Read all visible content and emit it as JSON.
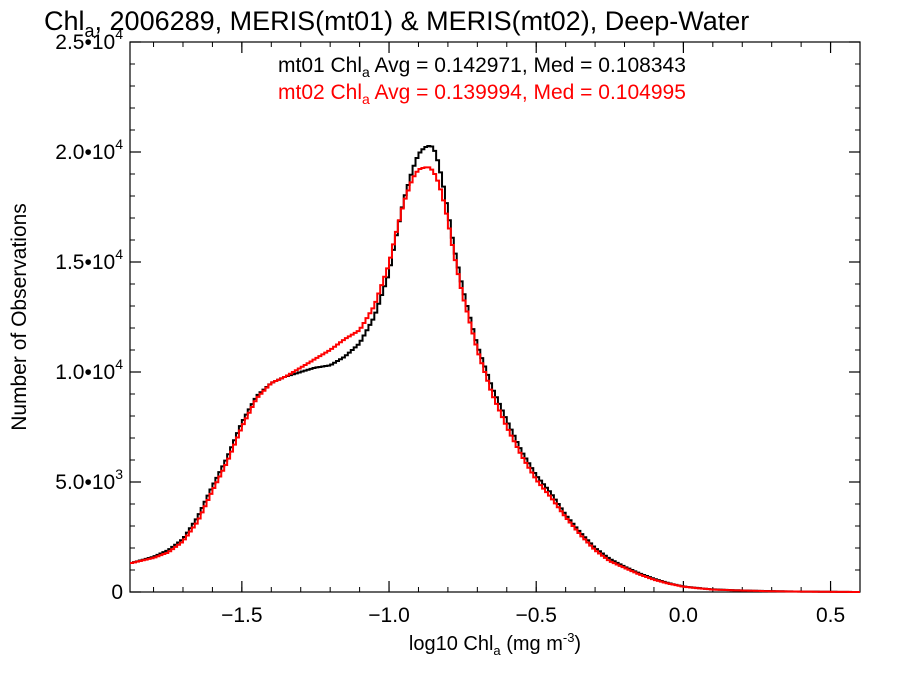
{
  "chart_data": {
    "type": "line",
    "title": {
      "prefix": "Chl",
      "sub": "a",
      "rest": ", 2006289, MERIS(mt01) & MERIS(mt02), Deep-Water"
    },
    "xlabel": {
      "prefix": "log10 Chl",
      "sub": "a",
      "middle": " (mg m",
      "sup": "-3",
      "suffix": ")"
    },
    "ylabel": "Number of Observations",
    "xlim": [
      -1.88,
      0.6
    ],
    "ylim": [
      0,
      25000
    ],
    "x_ticks": [
      {
        "value": -1.5,
        "label": "−1.5"
      },
      {
        "value": -1.0,
        "label": "−1.0"
      },
      {
        "value": -0.5,
        "label": "−0.5"
      },
      {
        "value": 0.0,
        "label": "0.0"
      },
      {
        "value": 0.5,
        "label": "0.5"
      }
    ],
    "y_ticks": [
      {
        "value": 0,
        "mantissa": "0",
        "exp": ""
      },
      {
        "value": 5000,
        "mantissa": "5.0•10",
        "exp": "3"
      },
      {
        "value": 10000,
        "mantissa": "1.0•10",
        "exp": "4"
      },
      {
        "value": 15000,
        "mantissa": "1.5•10",
        "exp": "4"
      },
      {
        "value": 20000,
        "mantissa": "2.0•10",
        "exp": "4"
      },
      {
        "value": 25000,
        "mantissa": "2.5•10",
        "exp": "4"
      }
    ],
    "x_minor_step": 0.1,
    "y_minor_step": 1000,
    "annotations": [
      {
        "prefix": "mt01 Chl",
        "sub": "a",
        "rest": " Avg = 0.142971, Med = 0.108343",
        "color": "#000000"
      },
      {
        "prefix": "mt02 Chl",
        "sub": "a",
        "rest": " Avg = 0.139994, Med = 0.104995",
        "color": "#ff0000"
      }
    ],
    "series": [
      {
        "color": "#000000",
        "x": [
          -1.88,
          -1.8,
          -1.75,
          -1.7,
          -1.65,
          -1.6,
          -1.55,
          -1.5,
          -1.45,
          -1.4,
          -1.35,
          -1.3,
          -1.25,
          -1.2,
          -1.15,
          -1.1,
          -1.05,
          -1.0,
          -0.98,
          -0.95,
          -0.92,
          -0.9,
          -0.88,
          -0.86,
          -0.85,
          -0.84,
          -0.82,
          -0.8,
          -0.78,
          -0.75,
          -0.72,
          -0.7,
          -0.65,
          -0.6,
          -0.55,
          -0.5,
          -0.45,
          -0.4,
          -0.35,
          -0.3,
          -0.25,
          -0.2,
          -0.15,
          -0.1,
          -0.05,
          0.0,
          0.05,
          0.1,
          0.2,
          0.3,
          0.4,
          0.5,
          0.6
        ],
        "y": [
          1300,
          1600,
          1900,
          2400,
          3400,
          4800,
          6100,
          7700,
          8900,
          9500,
          9800,
          10000,
          10200,
          10300,
          10700,
          11300,
          12500,
          14500,
          15900,
          17800,
          19200,
          19900,
          20200,
          20300,
          20200,
          19900,
          18800,
          17300,
          15700,
          13800,
          12200,
          11200,
          9300,
          7800,
          6400,
          5300,
          4500,
          3500,
          2700,
          2000,
          1500,
          1150,
          850,
          600,
          400,
          250,
          180,
          120,
          70,
          40,
          20,
          10,
          0
        ]
      },
      {
        "color": "#ff0000",
        "x": [
          -1.88,
          -1.8,
          -1.75,
          -1.7,
          -1.65,
          -1.6,
          -1.55,
          -1.5,
          -1.45,
          -1.4,
          -1.35,
          -1.3,
          -1.25,
          -1.2,
          -1.15,
          -1.1,
          -1.05,
          -1.0,
          -0.98,
          -0.95,
          -0.92,
          -0.9,
          -0.88,
          -0.86,
          -0.85,
          -0.84,
          -0.82,
          -0.8,
          -0.78,
          -0.75,
          -0.72,
          -0.7,
          -0.65,
          -0.6,
          -0.55,
          -0.5,
          -0.45,
          -0.4,
          -0.35,
          -0.3,
          -0.25,
          -0.2,
          -0.15,
          -0.1,
          -0.05,
          0.0,
          0.05,
          0.1,
          0.2,
          0.3,
          0.4,
          0.5,
          0.6
        ],
        "y": [
          1300,
          1550,
          1800,
          2300,
          3200,
          4600,
          5900,
          7500,
          8800,
          9500,
          9800,
          10200,
          10600,
          11000,
          11500,
          11900,
          13000,
          14900,
          16100,
          17700,
          18800,
          19200,
          19300,
          19300,
          19100,
          18900,
          18100,
          16900,
          15400,
          13500,
          12000,
          11000,
          9000,
          7500,
          6200,
          5100,
          4300,
          3400,
          2600,
          1900,
          1400,
          1100,
          800,
          560,
          380,
          240,
          170,
          110,
          65,
          35,
          18,
          8,
          0
        ]
      }
    ]
  }
}
